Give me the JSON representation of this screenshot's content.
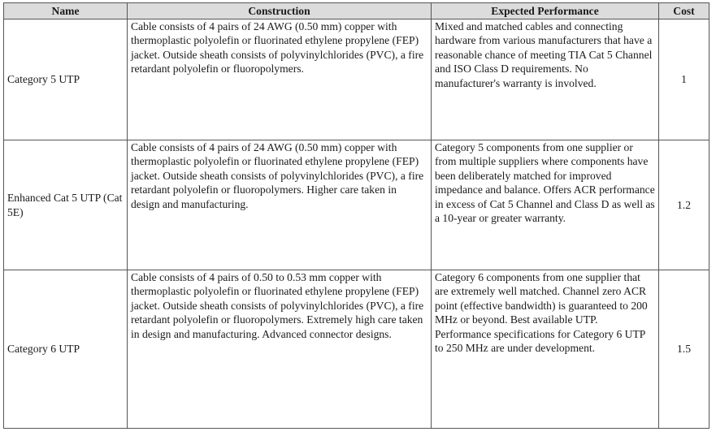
{
  "table": {
    "header": [
      "Name",
      "Construction",
      "Expected Performance",
      "Cost"
    ],
    "rows": [
      [
        "Category 5 UTP",
        "Cable consists of 4 pairs of 24 AWG (0.50 mm) copper with thermoplastic polyolefin or fluorinated ethylene propylene (FEP) jacket. Outside sheath consists of polyvinylchlorides (PVC), a fire retardant polyolefin or fluoropolymers.",
        "Mixed and matched cables and connecting hardware from various manufacturers that have a reasonable chance of meeting TIA Cat 5 Channel and ISO Class D requirements. No manufacturer's warranty is involved.",
        1
      ],
      [
        "Enhanced Cat 5 UTP (Cat 5E)",
        "Cable consists of 4 pairs of 24 AWG (0.50 mm) copper with thermoplastic polyolefin or fluorinated ethylene propylene (FEP) jacket. Outside sheath consists of polyvinylchlorides (PVC), a fire retardant polyolefin or fluoropolymers. Higher care taken in design and manufacturing.",
        "Category 5 components from one supplier or from multiple suppliers where components have been deliberately matched for improved impedance and balance. Offers ACR performance in excess of Cat 5 Channel and Class D as well as a 10-year or greater warranty.",
        1.2
      ],
      [
        "Category 6 UTP",
        "Cable consists of 4 pairs of 0.50 to 0.53 mm copper with thermoplastic polyolefin or fluorinated ethylene propylene (FEP) jacket. Outside sheath consists of polyvinylchlorides (PVC), a fire retardant polyolefin or fluoropolymers. Extremely high care taken in design and manufacturing. Advanced connector designs.",
        "Category 6 components from one supplier that are extremely well matched. Channel zero ACR point (effective bandwidth) is guaranteed to 200 MHz or beyond. Best available UTP. Performance specifications for Category 6 UTP to 250 MHz are under development.",
        1.5
      ]
    ]
  }
}
